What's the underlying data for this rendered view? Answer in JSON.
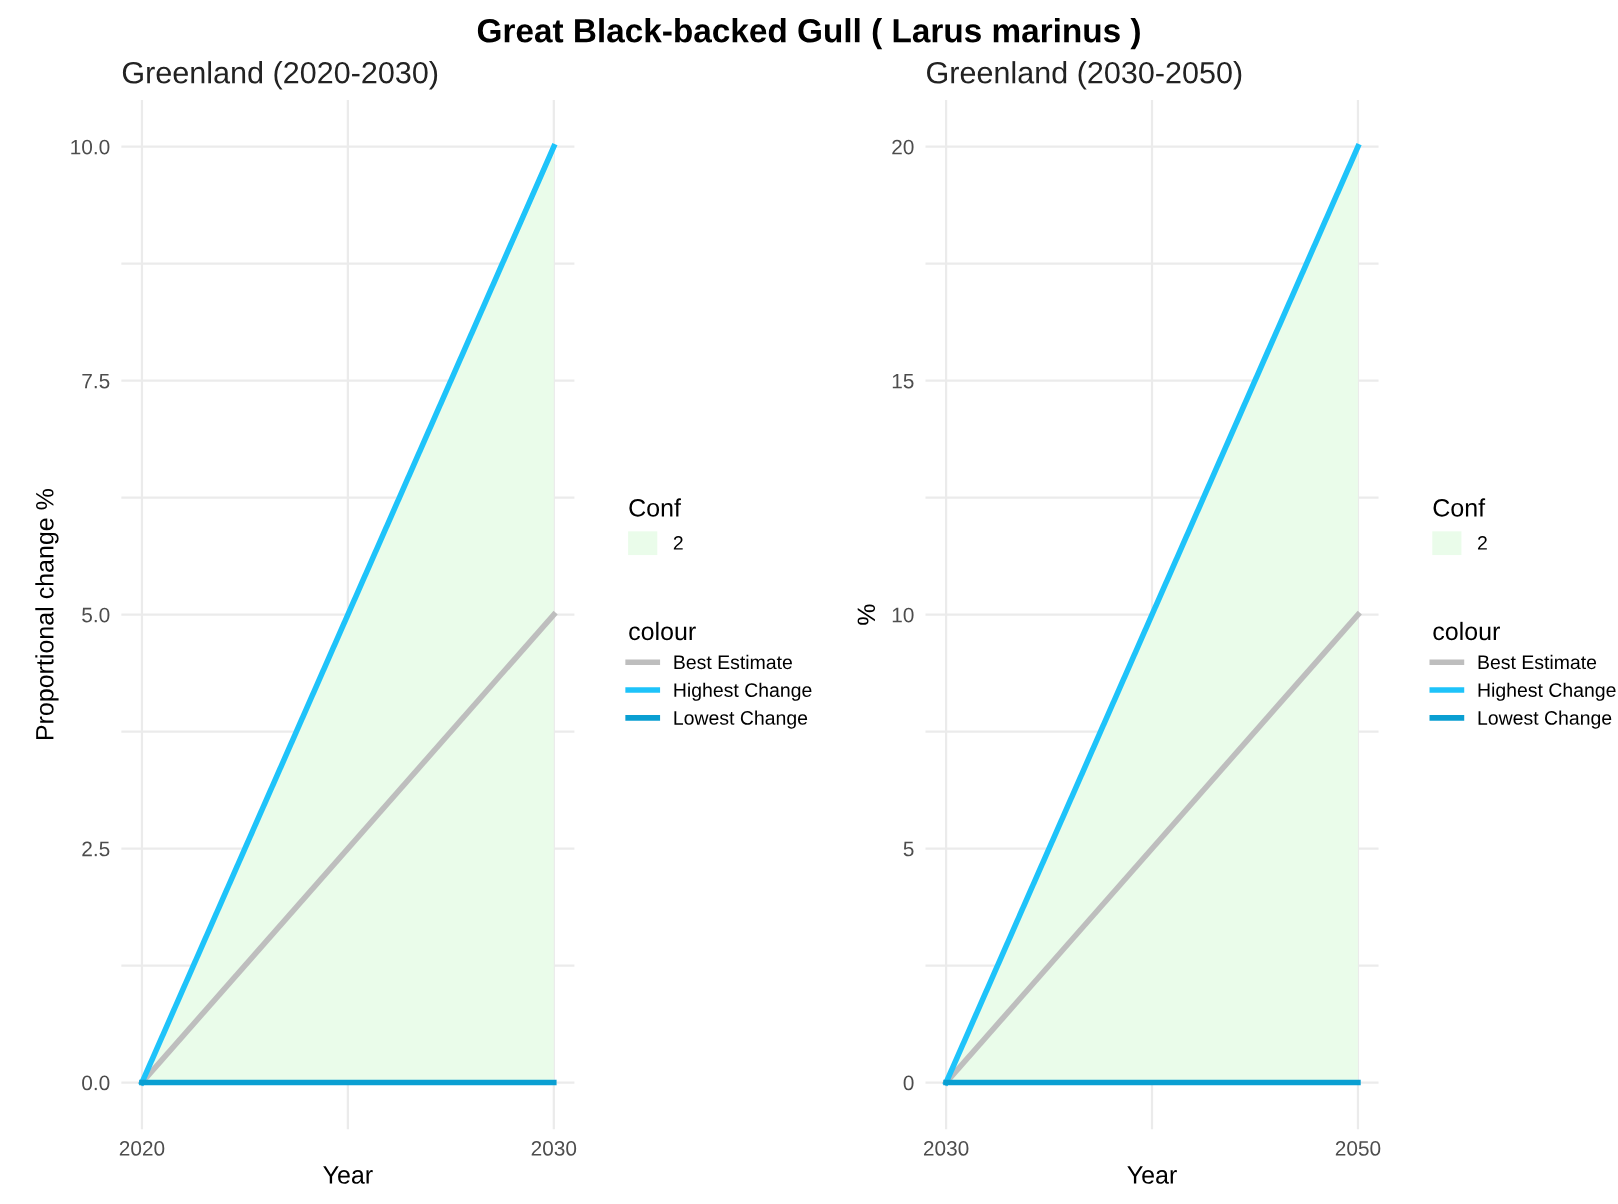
{
  "chart_data": [
    {
      "type": "line",
      "title": "Greenland (2020-2030)",
      "xlabel": "Year",
      "ylabel": "Proportional change %",
      "legend_title": "colour",
      "legend": "right",
      "annotations": [
        "Great Black-backed Gull ( Larus marinus )",
        "Conf",
        "2"
      ],
      "x": [
        2020,
        2030
      ],
      "xlim": [
        2019.5,
        2030.5
      ],
      "xticks": [
        2020,
        {
          "value": 2025,
          "label": null
        },
        2030
      ],
      "ylim": [
        -0.5,
        10.5
      ],
      "yticks": [
        {
          "value": 0,
          "label": "0.0"
        },
        {
          "value": 1.25,
          "label": null
        },
        {
          "value": 2.5,
          "label": "2.5"
        },
        {
          "value": 3.75,
          "label": null
        },
        {
          "value": 5,
          "label": "5.0"
        },
        {
          "value": 6.25,
          "label": null
        },
        {
          "value": 7.5,
          "label": "7.5"
        },
        {
          "value": 8.75,
          "label": null
        },
        {
          "value": 10,
          "label": "10.0"
        }
      ],
      "grid": true,
      "series": [
        {
          "name": "Best Estimate",
          "color": "#bebebe",
          "values": [
            0,
            5
          ],
          "lower": [
            0,
            0
          ],
          "upper": [
            0,
            10
          ]
        },
        {
          "name": "Highest Change",
          "color": "#1ec3fa",
          "values": [
            0,
            10
          ]
        },
        {
          "name": "Lowest Change",
          "color": "#0a9fd2",
          "values": [
            0,
            0
          ]
        }
      ]
    },
    {
      "type": "line",
      "title": "Greenland (2030-2050)",
      "xlabel": "Year",
      "ylabel": "%",
      "legend_title": "colour",
      "legend": "right",
      "annotations": [
        "Conf",
        "2"
      ],
      "x": [
        2030,
        2050
      ],
      "xlim": [
        2029,
        2051
      ],
      "xticks": [
        2030,
        {
          "value": 2040,
          "label": null
        },
        2050
      ],
      "ylim": [
        -1,
        21
      ],
      "yticks": [
        0,
        {
          "value": 2.5,
          "label": null
        },
        5,
        {
          "value": 7.5,
          "label": null
        },
        10,
        {
          "value": 12.5,
          "label": null
        },
        15,
        {
          "value": 17.5,
          "label": null
        },
        20
      ],
      "grid": true,
      "series": [
        {
          "name": "Best Estimate",
          "color": "#bebebe",
          "values": [
            0,
            10
          ],
          "lower": [
            0,
            0
          ],
          "upper": [
            0,
            20
          ]
        },
        {
          "name": "Highest Change",
          "color": "#1ec3fa",
          "values": [
            0,
            20
          ]
        },
        {
          "name": "Lowest Change",
          "color": "#0a9fd2",
          "values": [
            0,
            0
          ]
        }
      ]
    }
  ]
}
